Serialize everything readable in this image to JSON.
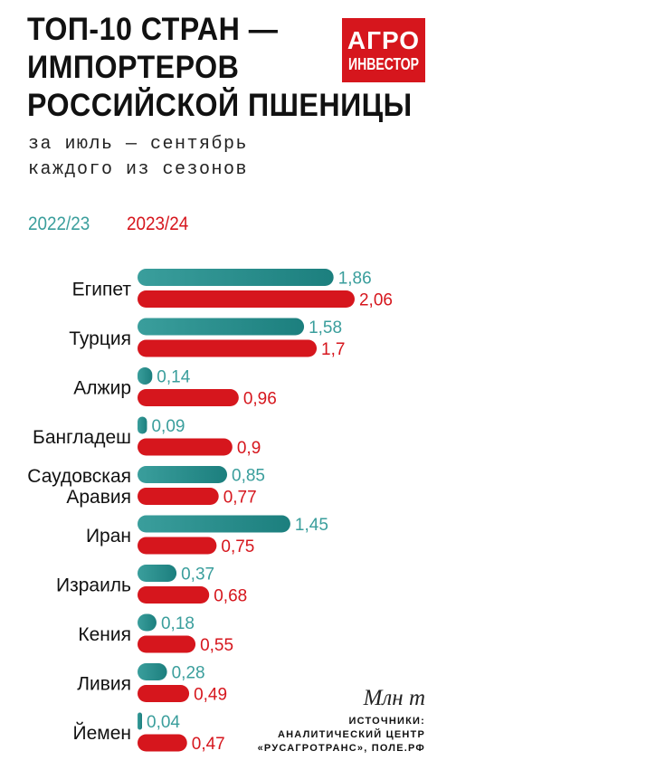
{
  "header": {
    "title_lines": [
      "ТОП-10 СТРАН —",
      "ИМПОРТЕРОВ",
      "РОССИЙСКОЙ ПШЕНИЦЫ"
    ],
    "subtitle_lines": [
      "за июль — сентябрь",
      "каждого из сезонов"
    ]
  },
  "logo": {
    "line1": "АГРО",
    "line2": "ИНВЕСТОР"
  },
  "footer": {
    "units": "Млн т",
    "source_lines": [
      "ИСТОЧНИКИ:",
      "АНАЛИТИЧЕСКИЙ ЦЕНТР",
      "«РУСАГРОТРАНС», ПОЛЕ.РФ"
    ]
  },
  "colors": {
    "series_2022": "#3a9e9c",
    "series_2022_dark": "#1c7f7e",
    "series_2023": "#d6161d"
  },
  "chart_data": {
    "type": "bar",
    "orientation": "horizontal",
    "categories": [
      "Египет",
      "Турция",
      "Алжир",
      "Бангладеш",
      "Саудовская Аравия",
      "Иран",
      "Израиль",
      "Кения",
      "Ливия",
      "Йемен"
    ],
    "category_lines": [
      [
        "Египет"
      ],
      [
        "Турция"
      ],
      [
        "Алжир"
      ],
      [
        "Бангладеш"
      ],
      [
        "Саудовская",
        "Аравия"
      ],
      [
        "Иран"
      ],
      [
        "Израиль"
      ],
      [
        "Кения"
      ],
      [
        "Ливия"
      ],
      [
        "Йемен"
      ]
    ],
    "series": [
      {
        "name": "2022/23",
        "values": [
          1.86,
          1.58,
          0.14,
          0.09,
          0.85,
          1.45,
          0.37,
          0.18,
          0.28,
          0.04
        ],
        "labels": [
          "1,86",
          "1,58",
          "0,14",
          "0,09",
          "0,85",
          "1,45",
          "0,37",
          "0,18",
          "0,28",
          "0,04"
        ]
      },
      {
        "name": "2023/24",
        "values": [
          2.06,
          1.7,
          0.96,
          0.9,
          0.77,
          0.75,
          0.68,
          0.55,
          0.49,
          0.47
        ],
        "labels": [
          "2,06",
          "1,7",
          "0,96",
          "0,9",
          "0,77",
          "0,75",
          "0,68",
          "0,55",
          "0,49",
          "0,47"
        ]
      }
    ],
    "unit": "Млн т",
    "xlim": [
      0,
      2.06
    ],
    "grid": false,
    "legend": "top-left"
  }
}
